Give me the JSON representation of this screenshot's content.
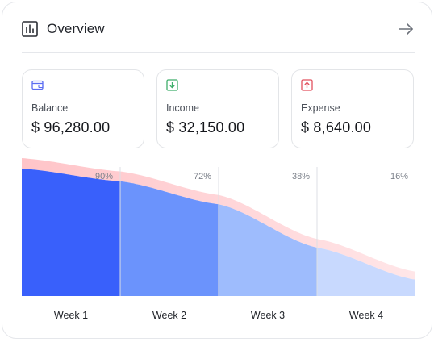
{
  "header": {
    "title": "Overview",
    "icon": "bar-chart-icon",
    "action_icon": "arrow-right-icon"
  },
  "stats": [
    {
      "label": "Balance",
      "value": "$ 96,280.00",
      "icon": "wallet-icon",
      "color": "#5b6cf2"
    },
    {
      "label": "Income",
      "value": "$ 32,150.00",
      "icon": "arrow-down-box-icon",
      "color": "#3fae6a"
    },
    {
      "label": "Expense",
      "value": "$ 8,640.00",
      "icon": "arrow-up-box-icon",
      "color": "#e2505e"
    }
  ],
  "chart_data": {
    "type": "area",
    "categories": [
      "Week 1",
      "Week 2",
      "Week 3",
      "Week 4"
    ],
    "percent_labels": [
      "90%",
      "72%",
      "38%",
      "16%"
    ],
    "values": [
      90,
      72,
      38,
      16
    ],
    "colors": {
      "bands": [
        "#3960fb",
        "#6b93fc",
        "#9ebcfd",
        "#c8d9fe"
      ],
      "outline": "#ffc4c8"
    }
  }
}
